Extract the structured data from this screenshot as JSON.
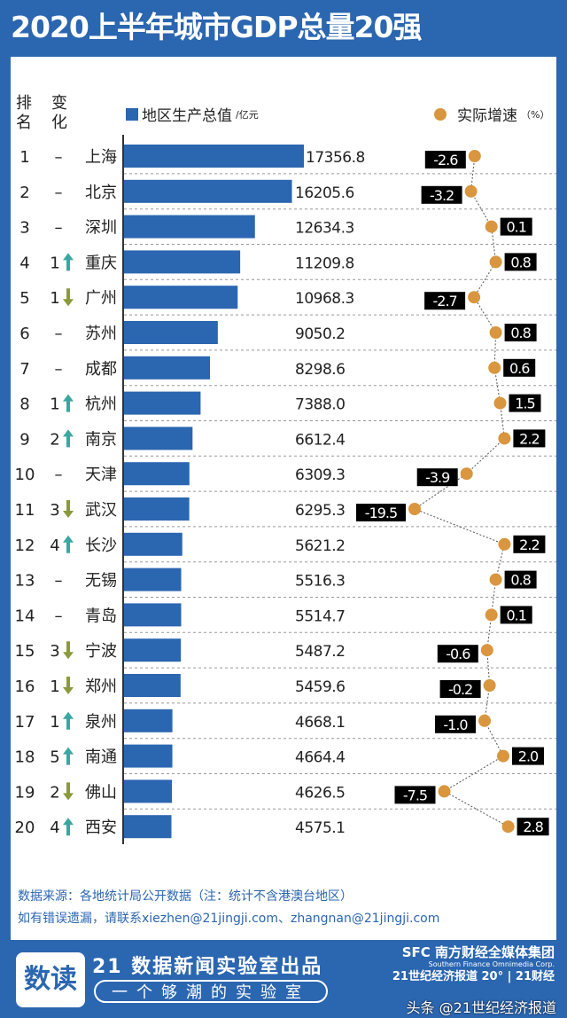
{
  "title": "2020上半年城市GDP总量20强",
  "headers": {
    "rank": "排\n名",
    "change": "变\n化"
  },
  "chart_data": {
    "type": "bar",
    "title": "2020上半年城市GDP总量20强",
    "legend": [
      {
        "name": "地区生产总值",
        "unit": "/亿元",
        "color": "#2b66b0",
        "mark": "bar"
      },
      {
        "name": "实际增速",
        "unit": "（%）",
        "color": "#d9963e",
        "mark": "dot-line"
      }
    ],
    "legend_placement": "top",
    "categories": [
      "上海",
      "北京",
      "深圳",
      "重庆",
      "广州",
      "苏州",
      "成都",
      "杭州",
      "南京",
      "天津",
      "武汉",
      "长沙",
      "无锡",
      "青岛",
      "宁波",
      "郑州",
      "泉州",
      "南通",
      "佛山",
      "西安"
    ],
    "ranks": [
      1,
      2,
      3,
      4,
      5,
      6,
      7,
      8,
      9,
      10,
      11,
      12,
      13,
      14,
      15,
      16,
      17,
      18,
      19,
      20
    ],
    "rank_change": [
      {
        "n": "",
        "dir": "none"
      },
      {
        "n": "",
        "dir": "none"
      },
      {
        "n": "",
        "dir": "none"
      },
      {
        "n": "1",
        "dir": "up"
      },
      {
        "n": "1",
        "dir": "down"
      },
      {
        "n": "",
        "dir": "none"
      },
      {
        "n": "",
        "dir": "none"
      },
      {
        "n": "1",
        "dir": "up"
      },
      {
        "n": "2",
        "dir": "up"
      },
      {
        "n": "",
        "dir": "none"
      },
      {
        "n": "3",
        "dir": "down"
      },
      {
        "n": "4",
        "dir": "up"
      },
      {
        "n": "",
        "dir": "none"
      },
      {
        "n": "",
        "dir": "none"
      },
      {
        "n": "3",
        "dir": "down"
      },
      {
        "n": "1",
        "dir": "down"
      },
      {
        "n": "1",
        "dir": "up"
      },
      {
        "n": "5",
        "dir": "up"
      },
      {
        "n": "2",
        "dir": "down"
      },
      {
        "n": "4",
        "dir": "up"
      }
    ],
    "series": [
      {
        "name": "地区生产总值",
        "values": [
          17356.8,
          16205.6,
          12634.3,
          11209.8,
          10968.3,
          9050.2,
          8298.6,
          7388.0,
          6612.4,
          6309.3,
          6295.3,
          5621.2,
          5516.3,
          5514.7,
          5487.2,
          5459.6,
          4668.1,
          4664.4,
          4626.5,
          4575.1
        ]
      },
      {
        "name": "实际增速",
        "values": [
          -2.6,
          -3.2,
          0.1,
          0.8,
          -2.7,
          0.8,
          0.6,
          1.5,
          2.2,
          -3.9,
          -19.5,
          2.2,
          0.8,
          0.1,
          -0.6,
          -0.2,
          -1.0,
          2.0,
          -7.5,
          2.8
        ]
      }
    ],
    "colors": {
      "bar": "#2b66b0",
      "dot": "#d9963e",
      "up": "#3aa7a0",
      "down": "#8a9a3a",
      "label_bg": "#000000"
    }
  },
  "source": "数据来源：各地统计局公开数据（注：统计不含港澳台地区）",
  "contact": "如有错误遗漏，请联系xiezhen@21jingji.com、zhangnan@21jingji.com",
  "footer": {
    "lab": "21 数据新闻实验室出品",
    "slogan": "一个够潮的实验室",
    "logo": "数读",
    "group": "SFC 南方财经全媒体集团",
    "group_en": "Southern Finance Omnimedia Corp.",
    "brands": "21世纪经济报道 20° | 21财经",
    "watermark": "头条 @21世纪经济报道"
  }
}
